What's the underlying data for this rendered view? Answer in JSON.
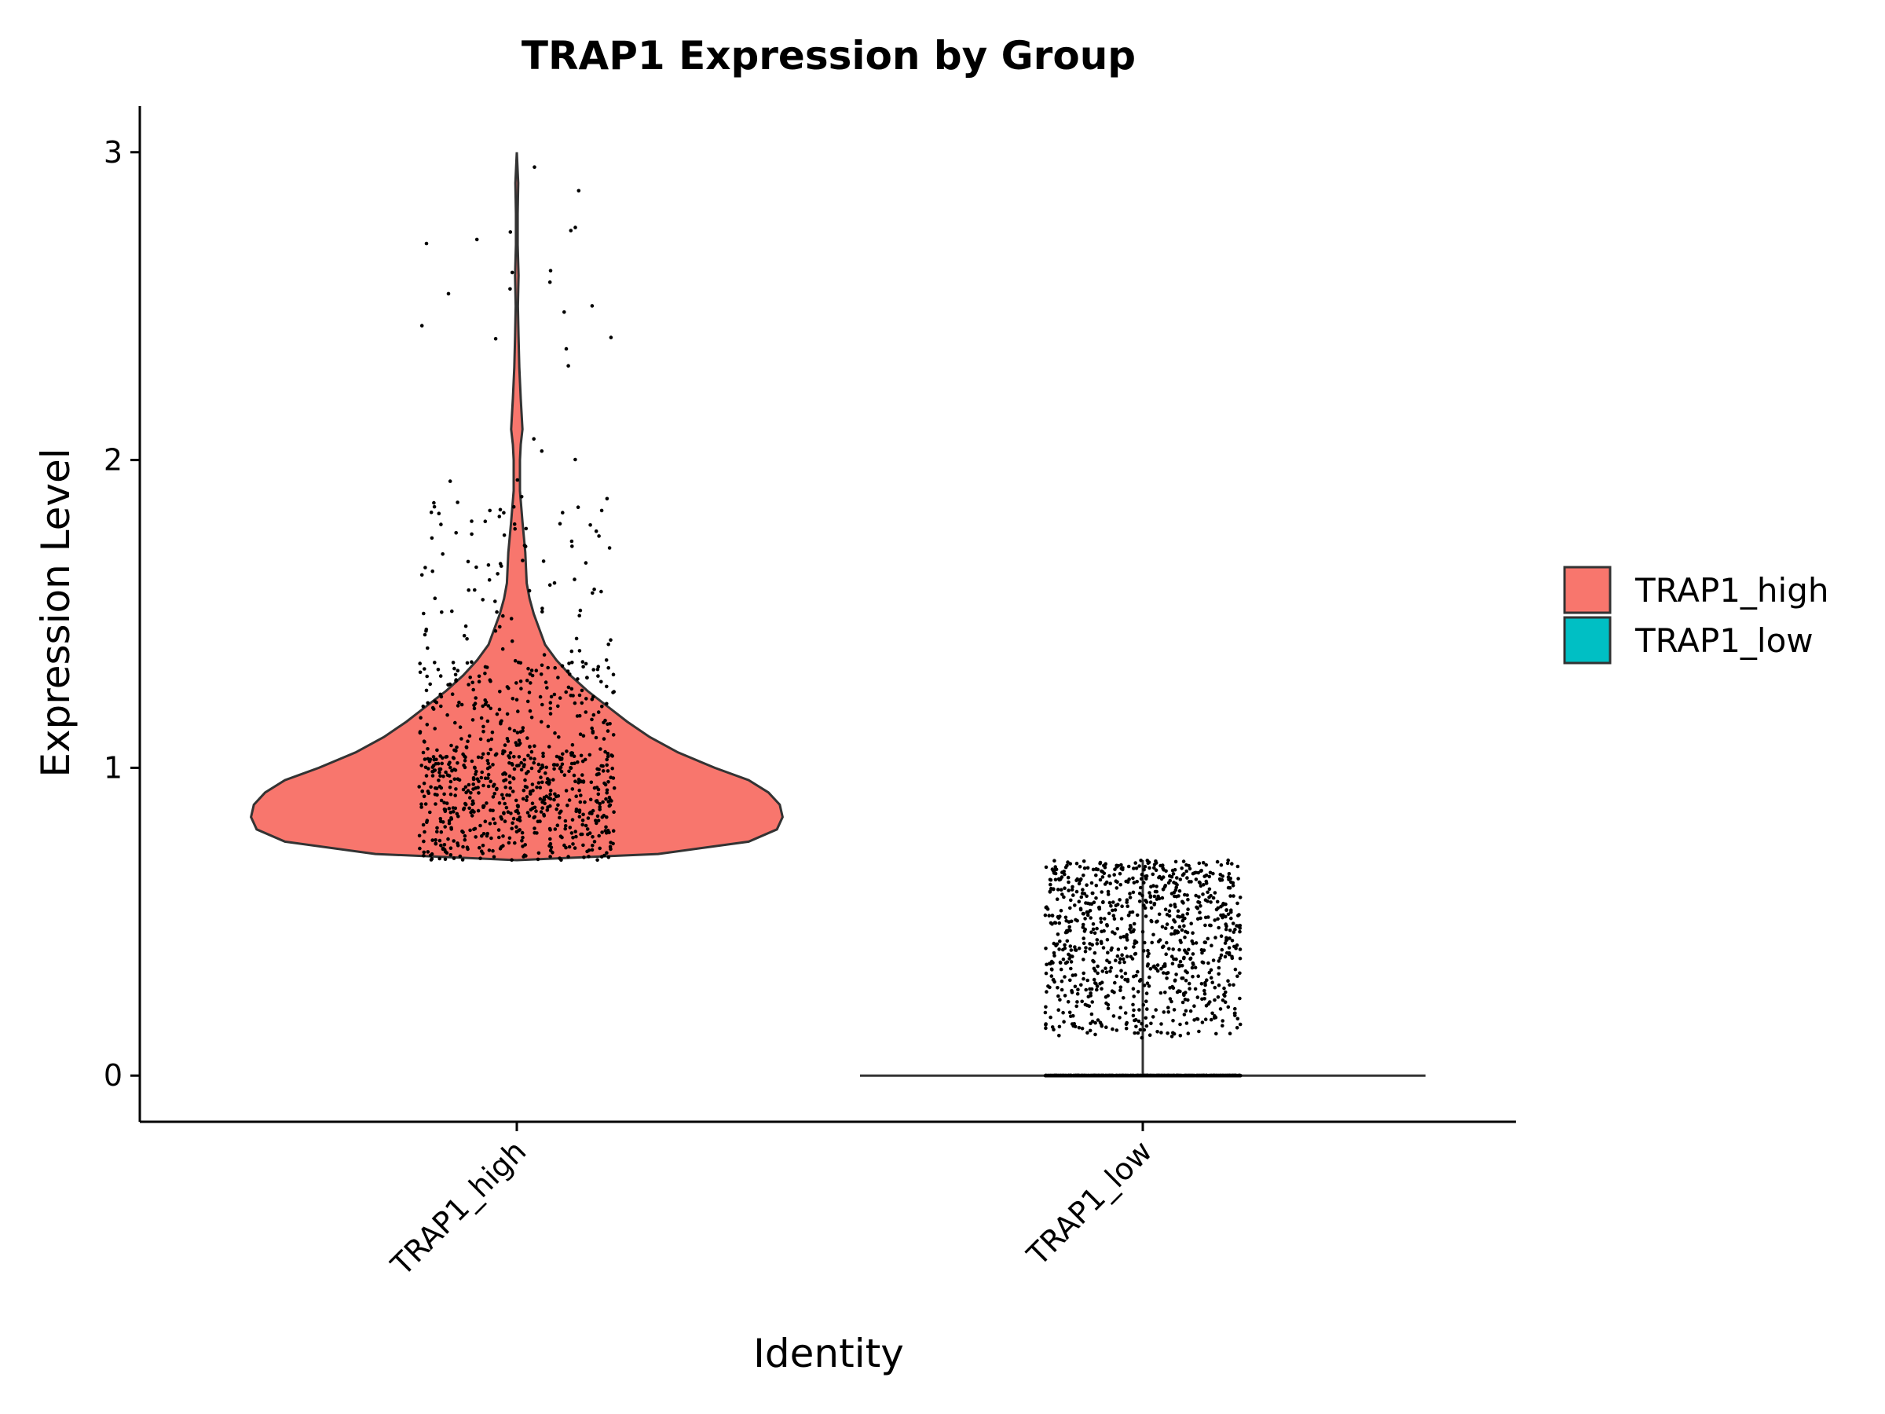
{
  "chart_data": {
    "type": "violin",
    "title": "TRAP1 Expression by Group",
    "xlabel": "Identity",
    "ylabel": "Expression Level",
    "categories": [
      "TRAP1_high",
      "TRAP1_low"
    ],
    "ylim": [
      -0.15,
      3.15
    ],
    "yticks": [
      0,
      1,
      2,
      3
    ],
    "legend_position": "right",
    "grid": false,
    "colors": {
      "TRAP1_high": "#F8766D",
      "TRAP1_low": "#00BFC4",
      "outline": "#333333",
      "points": "#000000"
    },
    "series": [
      {
        "name": "TRAP1_high",
        "min": 0.7,
        "max": 3.0,
        "density": [
          [
            0.7,
            0.0
          ],
          [
            0.72,
            0.5
          ],
          [
            0.76,
            0.82
          ],
          [
            0.8,
            0.92
          ],
          [
            0.84,
            0.94
          ],
          [
            0.88,
            0.93
          ],
          [
            0.92,
            0.89
          ],
          [
            0.96,
            0.82
          ],
          [
            1.0,
            0.7
          ],
          [
            1.05,
            0.57
          ],
          [
            1.1,
            0.47
          ],
          [
            1.15,
            0.39
          ],
          [
            1.2,
            0.32
          ],
          [
            1.25,
            0.25
          ],
          [
            1.3,
            0.19
          ],
          [
            1.35,
            0.14
          ],
          [
            1.4,
            0.1
          ],
          [
            1.45,
            0.08
          ],
          [
            1.5,
            0.06
          ],
          [
            1.55,
            0.045
          ],
          [
            1.6,
            0.035
          ],
          [
            1.7,
            0.03
          ],
          [
            1.8,
            0.02
          ],
          [
            1.9,
            0.011
          ],
          [
            2.0,
            0.011
          ],
          [
            2.05,
            0.014
          ],
          [
            2.1,
            0.02
          ],
          [
            2.2,
            0.014
          ],
          [
            2.3,
            0.009
          ],
          [
            2.4,
            0.006
          ],
          [
            2.5,
            0.004
          ],
          [
            2.6,
            0.006
          ],
          [
            2.7,
            0.003
          ],
          [
            2.8,
            0.003
          ],
          [
            2.9,
            0.005
          ],
          [
            3.0,
            0.0
          ]
        ],
        "n_points": 900,
        "point_jitter_width": 0.4
      },
      {
        "name": "TRAP1_low",
        "min": 0.0,
        "max": 0.7,
        "density_note": "mass at zero",
        "n_points_zero": 900,
        "n_points_nonzero": 900,
        "nonzero_range": [
          0.12,
          0.7
        ],
        "point_jitter_width": 0.4
      }
    ]
  }
}
